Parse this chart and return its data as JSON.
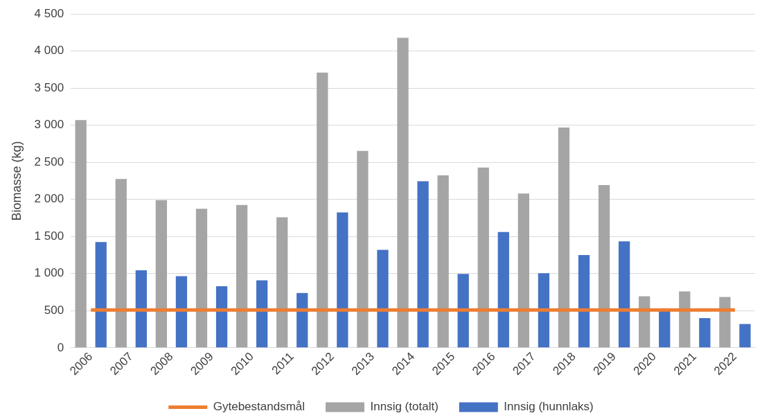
{
  "chart_data": {
    "type": "bar",
    "ylabel": "Biomasse (kg)",
    "categories": [
      "2006",
      "2007",
      "2008",
      "2009",
      "2010",
      "2011",
      "2012",
      "2013",
      "2014",
      "2015",
      "2016",
      "2017",
      "2018",
      "2019",
      "2020",
      "2021",
      "2022"
    ],
    "series": [
      {
        "name": "Innsig (totalt)",
        "color": "#a5a5a5",
        "values": [
          3070,
          2275,
          1990,
          1875,
          1925,
          1760,
          3710,
          2655,
          4180,
          2325,
          2430,
          2080,
          2970,
          2195,
          695,
          760,
          685
        ]
      },
      {
        "name": "Innsig (hunnlaks)",
        "color": "#4472c4",
        "values": [
          1425,
          1045,
          965,
          830,
          910,
          740,
          1825,
          1320,
          2245,
          995,
          1560,
          1005,
          1250,
          1435,
          500,
          400,
          320
        ]
      },
      {
        "name": "Gytebestandsmål",
        "type": "line",
        "color": "#ed7d31",
        "values": [
          510,
          510,
          510,
          510,
          510,
          510,
          510,
          510,
          510,
          510,
          510,
          510,
          510,
          510,
          510,
          510,
          510
        ]
      }
    ],
    "ylim": [
      0,
      4500
    ],
    "yticks": [
      0,
      500,
      {
        "value": 1000,
        "label": "1 000"
      },
      {
        "value": 1500,
        "label": "1 500"
      },
      {
        "value": 2000,
        "label": "2 000"
      },
      {
        "value": 2500,
        "label": "2 500"
      },
      {
        "value": 3000,
        "label": "3 000"
      },
      {
        "value": 3500,
        "label": "3 500"
      },
      {
        "value": 4000,
        "label": "4 000"
      },
      {
        "value": 4500,
        "label": "4 500"
      }
    ],
    "grid": "y",
    "legend": "bottom",
    "marker": "none",
    "line_style": "solid"
  }
}
